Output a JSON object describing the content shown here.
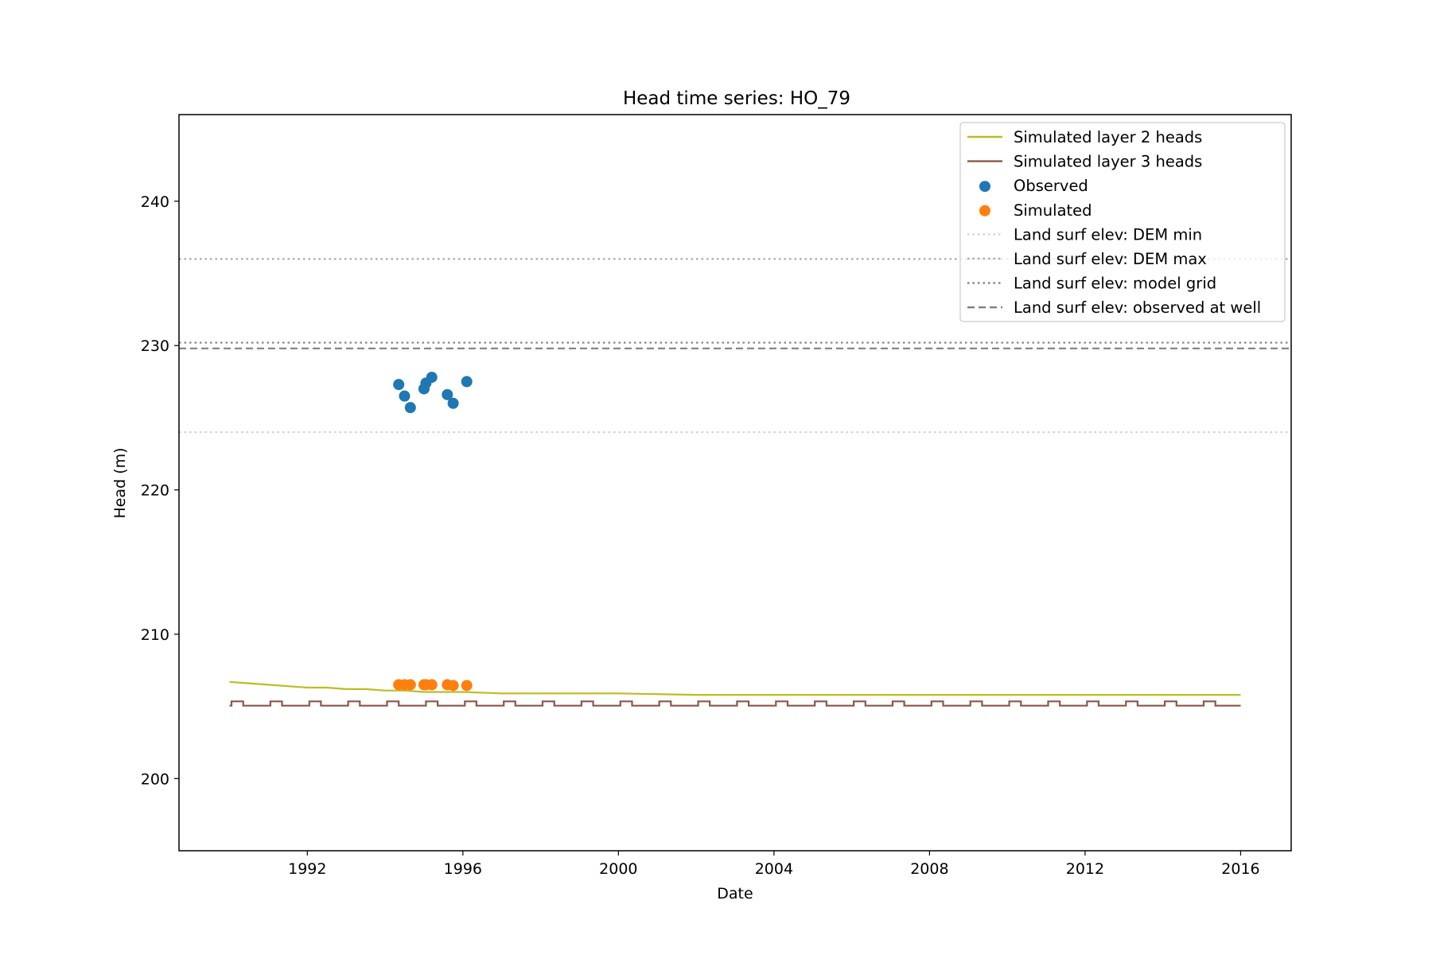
{
  "chart_data": {
    "type": "line",
    "title": "Head time series: HO_79",
    "xlabel": "Date",
    "ylabel": "Head (m)",
    "xlim": [
      1988.7,
      2017.3
    ],
    "ylim": [
      195,
      246
    ],
    "xticks": [
      1992,
      1996,
      2000,
      2004,
      2008,
      2012,
      2016
    ],
    "yticks": [
      200,
      210,
      220,
      230,
      240
    ],
    "grid": false,
    "legend_position": "top-right",
    "series": [
      {
        "name": "Simulated layer 2 heads",
        "kind": "line",
        "color": "#bcbd22",
        "x": [
          1990.0,
          1990.5,
          1991.0,
          1991.5,
          1992.0,
          1992.5,
          1993.0,
          1993.5,
          1994.0,
          1994.5,
          1995.0,
          1995.5,
          1996.0,
          1997.0,
          1998.0,
          2000.0,
          2002.0,
          2004.0,
          2006.0,
          2008.0,
          2010.0,
          2012.0,
          2014.0,
          2016.0
        ],
        "y": [
          206.7,
          206.6,
          206.5,
          206.4,
          206.3,
          206.3,
          206.2,
          206.2,
          206.1,
          206.1,
          206.0,
          206.0,
          206.0,
          205.9,
          205.9,
          205.9,
          205.8,
          205.8,
          205.8,
          205.8,
          205.8,
          205.8,
          205.8,
          205.8
        ]
      },
      {
        "name": "Simulated layer 3 heads",
        "kind": "step",
        "color": "#8c564b",
        "base": 205.05,
        "peak": 205.35,
        "start": 1990.0,
        "end": 2016.0,
        "pulse_starts": [
          1990.05,
          1991.05,
          1992.05,
          1993.05,
          1994.05,
          1995.05,
          1996.05,
          1997.05,
          1998.05,
          1999.05,
          2000.05,
          2001.05,
          2002.05,
          2003.05,
          2004.05,
          2005.05,
          2006.05,
          2007.05,
          2008.05,
          2009.05,
          2010.05,
          2011.05,
          2012.05,
          2013.05,
          2014.05,
          2015.05
        ],
        "pulse_width": 0.3
      },
      {
        "name": "Observed",
        "kind": "scatter",
        "color": "#1f77b4",
        "x": [
          1994.35,
          1994.5,
          1994.65,
          1995.0,
          1995.05,
          1995.2,
          1995.6,
          1995.75,
          1996.1
        ],
        "y": [
          227.3,
          226.5,
          225.7,
          227.0,
          227.4,
          227.8,
          226.6,
          226.0,
          227.5
        ]
      },
      {
        "name": "Simulated",
        "kind": "scatter",
        "color": "#ff7f0e",
        "x": [
          1994.35,
          1994.5,
          1994.65,
          1995.0,
          1995.05,
          1995.2,
          1995.6,
          1995.75,
          1996.1
        ],
        "y": [
          206.5,
          206.5,
          206.5,
          206.5,
          206.5,
          206.5,
          206.5,
          206.45,
          206.45
        ]
      },
      {
        "name": "Land surf elev: DEM min",
        "kind": "hline",
        "style": "dotted",
        "color": "#d3d3d3",
        "y": 224.0
      },
      {
        "name": "Land surf elev: DEM max",
        "kind": "hline",
        "style": "dotted",
        "color": "#a9a9a9",
        "y": 236.0
      },
      {
        "name": "Land surf elev: model grid",
        "kind": "hline",
        "style": "dotted",
        "color": "#808080",
        "y": 230.2
      },
      {
        "name": "Land surf elev: observed at well",
        "kind": "hline",
        "style": "dashed",
        "color": "#808080",
        "y": 229.8
      }
    ]
  }
}
